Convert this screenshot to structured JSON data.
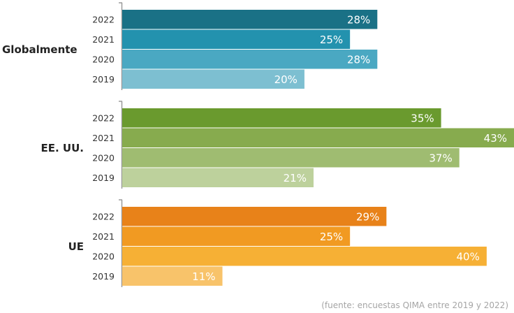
{
  "chart_data": {
    "type": "bar",
    "orientation": "horizontal",
    "xlim": [
      0,
      43
    ],
    "groups": [
      {
        "name": "Globalmente",
        "years": [
          "2022",
          "2021",
          "2020",
          "2019"
        ],
        "values": [
          28,
          25,
          28,
          20
        ],
        "labels": [
          "28%",
          "25%",
          "28%",
          "20%"
        ],
        "colors": [
          "#1a7186",
          "#2392ae",
          "#4aa8c2",
          "#7dbfd1"
        ]
      },
      {
        "name": "EE. UU.",
        "years": [
          "2022",
          "2021",
          "2020",
          "2019"
        ],
        "values": [
          35,
          43,
          37,
          21
        ],
        "labels": [
          "35%",
          "43%",
          "37%",
          "21%"
        ],
        "colors": [
          "#6a9a2e",
          "#87ab4e",
          "#9fbc71",
          "#bdd19c"
        ]
      },
      {
        "name": "UE",
        "years": [
          "2022",
          "2021",
          "2020",
          "2019"
        ],
        "values": [
          29,
          25,
          40,
          11
        ],
        "labels": [
          "29%",
          "25%",
          "40%",
          "11%"
        ],
        "colors": [
          "#e88219",
          "#f19a22",
          "#f6b035",
          "#f8c36a"
        ]
      }
    ],
    "source": "(fuente: encuestas QIMA entre 2019 y 2022)"
  }
}
